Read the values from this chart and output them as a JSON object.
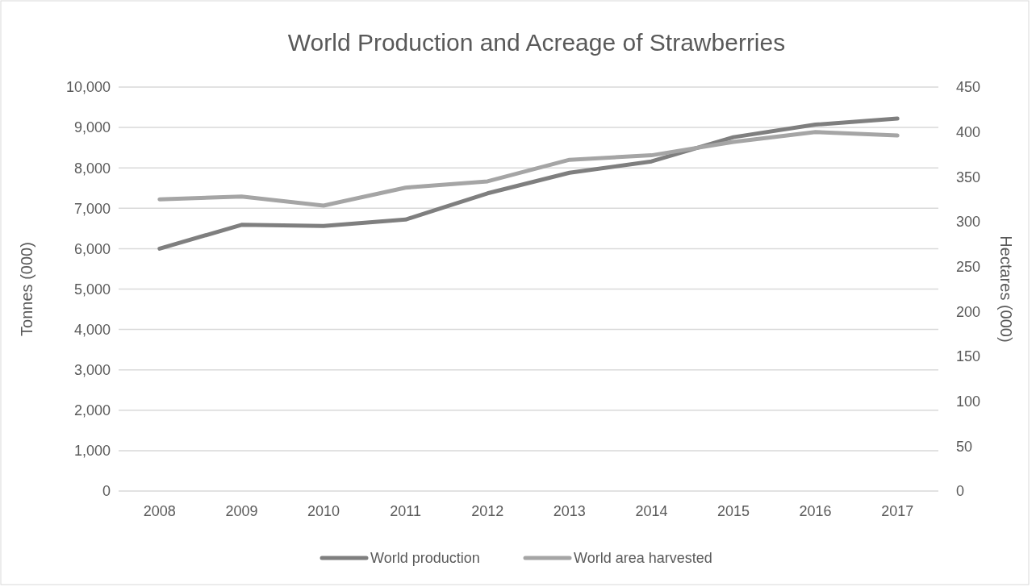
{
  "chart_data": {
    "type": "line",
    "title": "World Production and Acreage of Strawberries",
    "ylabel": "Tonnes (000)",
    "y2label": "Hectares (000)",
    "categories": [
      "2008",
      "2009",
      "2010",
      "2011",
      "2012",
      "2013",
      "2014",
      "2015",
      "2016",
      "2017"
    ],
    "series": [
      {
        "name": "World production",
        "color": "#7f7f7f",
        "values": [
          6000,
          6590,
          6560,
          6720,
          7370,
          7880,
          8160,
          8760,
          9070,
          9220
        ]
      },
      {
        "name": "World area harvested",
        "color": "#a5a5a5",
        "axis": "y2",
        "values": [
          325,
          328,
          318,
          338,
          345,
          369,
          374,
          389,
          400,
          396
        ]
      }
    ],
    "ylim": [
      0,
      10000
    ],
    "yticks": [
      {
        "value": 0,
        "label": "0"
      },
      {
        "value": 1000,
        "label": "1,000"
      },
      {
        "value": 2000,
        "label": "2,000"
      },
      {
        "value": 3000,
        "label": "3,000"
      },
      {
        "value": 4000,
        "label": "4,000"
      },
      {
        "value": 5000,
        "label": "5,000"
      },
      {
        "value": 6000,
        "label": "6,000"
      },
      {
        "value": 7000,
        "label": "7,000"
      },
      {
        "value": 8000,
        "label": "8,000"
      },
      {
        "value": 9000,
        "label": "9,000"
      },
      {
        "value": 10000,
        "label": "10,000"
      }
    ],
    "y2lim": [
      0,
      450
    ],
    "y2ticks": [
      0,
      50,
      100,
      150,
      200,
      250,
      300,
      350,
      400,
      450
    ],
    "grid": "y",
    "legend": "bottom",
    "marker": "none",
    "line_style": "solid"
  }
}
